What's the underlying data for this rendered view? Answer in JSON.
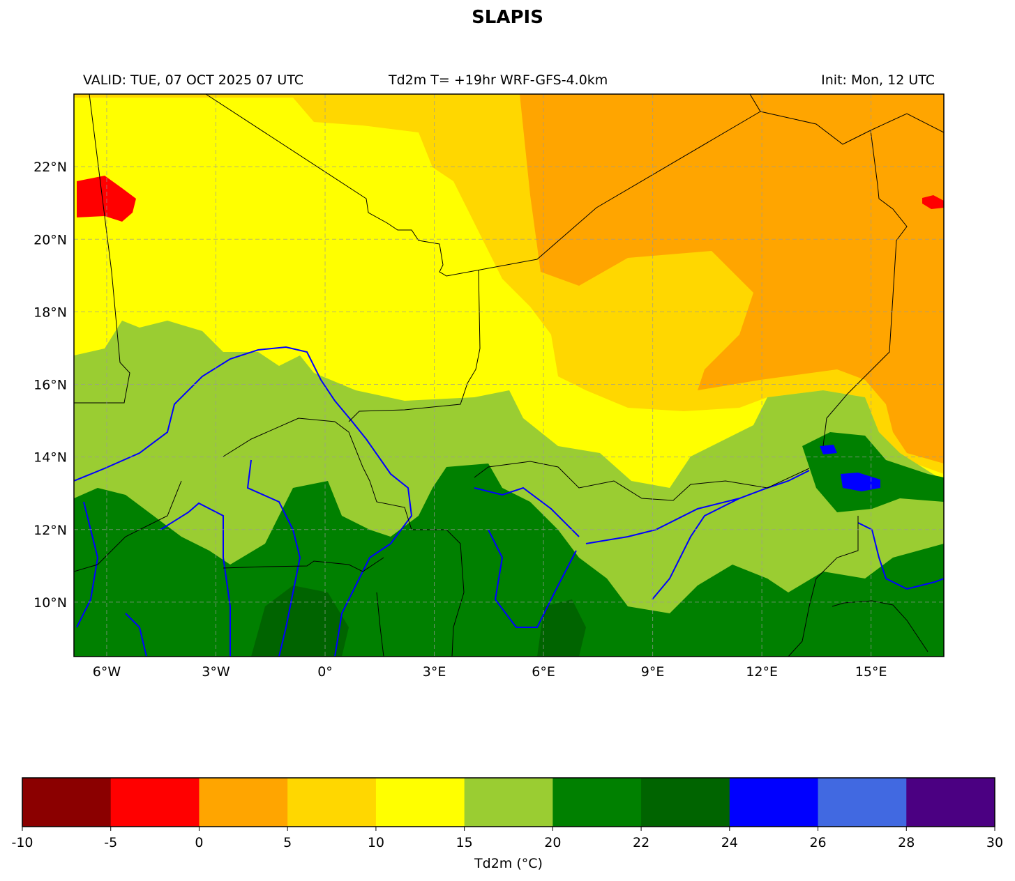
{
  "title": "SLAPIS",
  "header": {
    "valid": "VALID: TUE, 07 OCT 2025 07 UTC",
    "product": "Td2m T= +19hr WRF-GFS-4.0km",
    "init": "Init: Mon, 12 UTC"
  },
  "map": {
    "lon_range": [
      -6.9,
      17.0
    ],
    "lat_range": [
      8.5,
      24.0
    ],
    "lon_ticks": [
      {
        "value": -6,
        "label": "6°W"
      },
      {
        "value": -3,
        "label": "3°W"
      },
      {
        "value": 0,
        "label": "0°"
      },
      {
        "value": 3,
        "label": "3°E"
      },
      {
        "value": 6,
        "label": "6°E"
      },
      {
        "value": 9,
        "label": "9°E"
      },
      {
        "value": 12,
        "label": "12°E"
      },
      {
        "value": 15,
        "label": "15°E"
      }
    ],
    "lat_ticks": [
      {
        "value": 22,
        "label": "22°N"
      },
      {
        "value": 20,
        "label": "20°N"
      },
      {
        "value": 18,
        "label": "18°N"
      },
      {
        "value": 16,
        "label": "16°N"
      },
      {
        "value": 14,
        "label": "14°N"
      },
      {
        "value": 12,
        "label": "12°N"
      },
      {
        "value": 10,
        "label": "10°N"
      }
    ],
    "gridlines": true
  },
  "colorbar": {
    "label": "Td2m (°C)",
    "bounds": [
      "-10",
      "-5",
      "0",
      "5",
      "10",
      "15",
      "20",
      "22",
      "24",
      "26",
      "28",
      "30"
    ],
    "colors": [
      "#8b0000",
      "#ff0000",
      "#ffa500",
      "#ffd700",
      "#ffff00",
      "#9acd32",
      "#008000",
      "#006400",
      "#0000ff",
      "#4169e1",
      "#4b0082"
    ]
  }
}
